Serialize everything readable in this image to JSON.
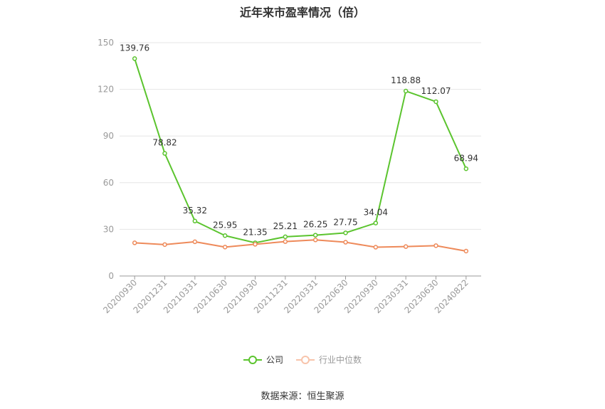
{
  "chart_data": {
    "type": "line",
    "title": "近年来市盈率情况（倍）",
    "categories": [
      "20200930",
      "20201231",
      "20210331",
      "20210630",
      "20210930",
      "20211231",
      "20220331",
      "20220630",
      "20220930",
      "20230331",
      "20230630",
      "20240822"
    ],
    "series": [
      {
        "name": "公司",
        "color": "#5bc42e",
        "labels": true,
        "values": [
          139.76,
          78.82,
          35.32,
          25.95,
          21.35,
          25.21,
          26.25,
          27.75,
          34.04,
          118.88,
          112.07,
          68.94
        ]
      },
      {
        "name": "行业中位数",
        "color": "#ee8a5a",
        "labels": false,
        "values": [
          21.3,
          20.2,
          22.0,
          18.6,
          20.4,
          22.1,
          23.2,
          21.7,
          18.5,
          18.9,
          19.5,
          16.0
        ]
      }
    ],
    "yticks": [
      0,
      30,
      60,
      90,
      120,
      150
    ],
    "ylim": [
      0,
      150
    ],
    "grid": true,
    "legend_position": "bottom"
  },
  "source": "数据来源：恒生聚源"
}
